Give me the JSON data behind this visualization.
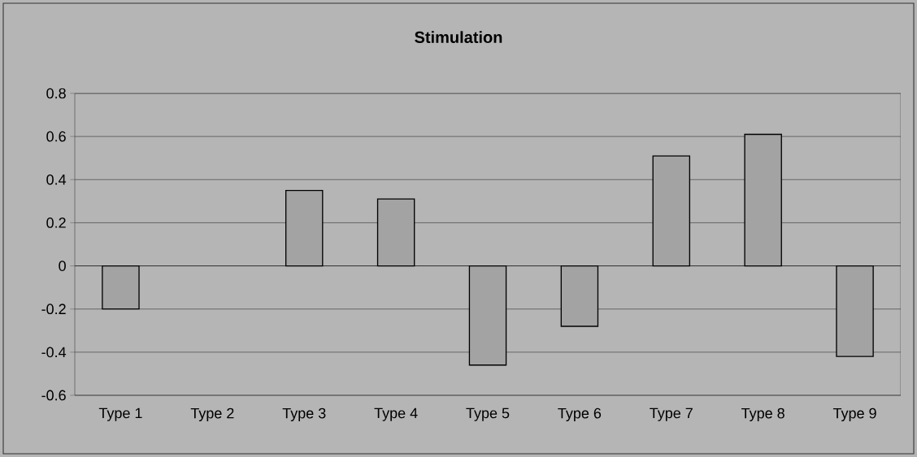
{
  "chart_data": {
    "type": "bar",
    "title": "Stimulation",
    "categories": [
      "Type 1",
      "Type 2",
      "Type 3",
      "Type 4",
      "Type 5",
      "Type 6",
      "Type 7",
      "Type 8",
      "Type 9"
    ],
    "values": [
      -0.2,
      null,
      0.35,
      0.31,
      -0.46,
      -0.28,
      0.51,
      0.61,
      -0.42
    ],
    "color": "#a3a3a3",
    "ylim": [
      -0.6,
      0.8
    ],
    "yticks": [
      -0.6,
      -0.4,
      -0.2,
      0,
      0.2,
      0.4,
      0.6,
      0.8
    ],
    "grid": "y"
  }
}
